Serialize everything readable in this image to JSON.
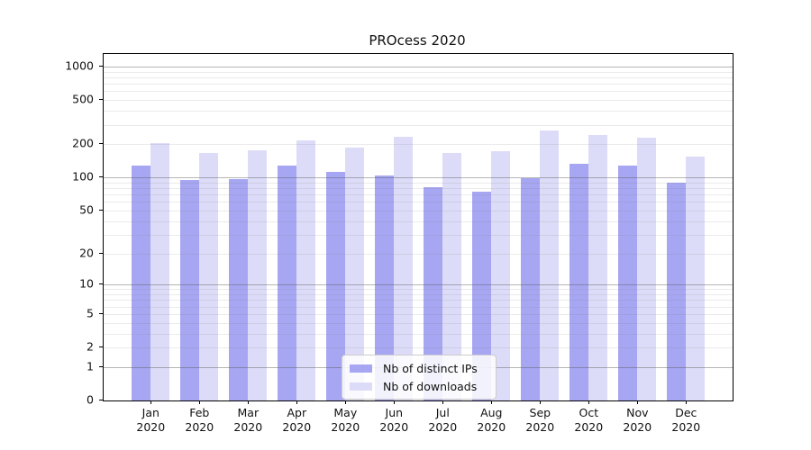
{
  "chart_data": {
    "type": "bar",
    "title": "PROcess 2020",
    "categories": [
      "Jan",
      "Feb",
      "Mar",
      "Apr",
      "May",
      "Jun",
      "Jul",
      "Aug",
      "Sep",
      "Oct",
      "Nov",
      "Dec"
    ],
    "x_tick_second_line": "2020",
    "series": [
      {
        "name": "Nb of distinct IPs",
        "color": "#a6a6f2",
        "values": [
          127,
          95,
          96,
          127,
          112,
          105,
          82,
          74,
          98,
          133,
          128,
          90
        ]
      },
      {
        "name": "Nb of downloads",
        "color": "#dcdcf8",
        "values": [
          205,
          167,
          175,
          218,
          186,
          234,
          165,
          174,
          265,
          240,
          231,
          154
        ]
      }
    ],
    "ylabel": "",
    "xlabel": "",
    "yscale": "log1p",
    "yticks": [
      0,
      1,
      2,
      5,
      10,
      20,
      50,
      100,
      200,
      500,
      1000
    ],
    "major_grid_values": [
      1,
      10,
      100,
      1000
    ],
    "ylim": [
      0,
      1300
    ],
    "grid": "on",
    "legend_position": "lower center"
  },
  "colors": {
    "bar_distinct_ips": "#a6a6f2",
    "bar_downloads": "#dcdcf8",
    "major_grid": "#b0b0b0",
    "minor_grid": "#ebebeb",
    "spine": "#000000",
    "legend_border": "#cccccc",
    "background": "#ffffff"
  }
}
